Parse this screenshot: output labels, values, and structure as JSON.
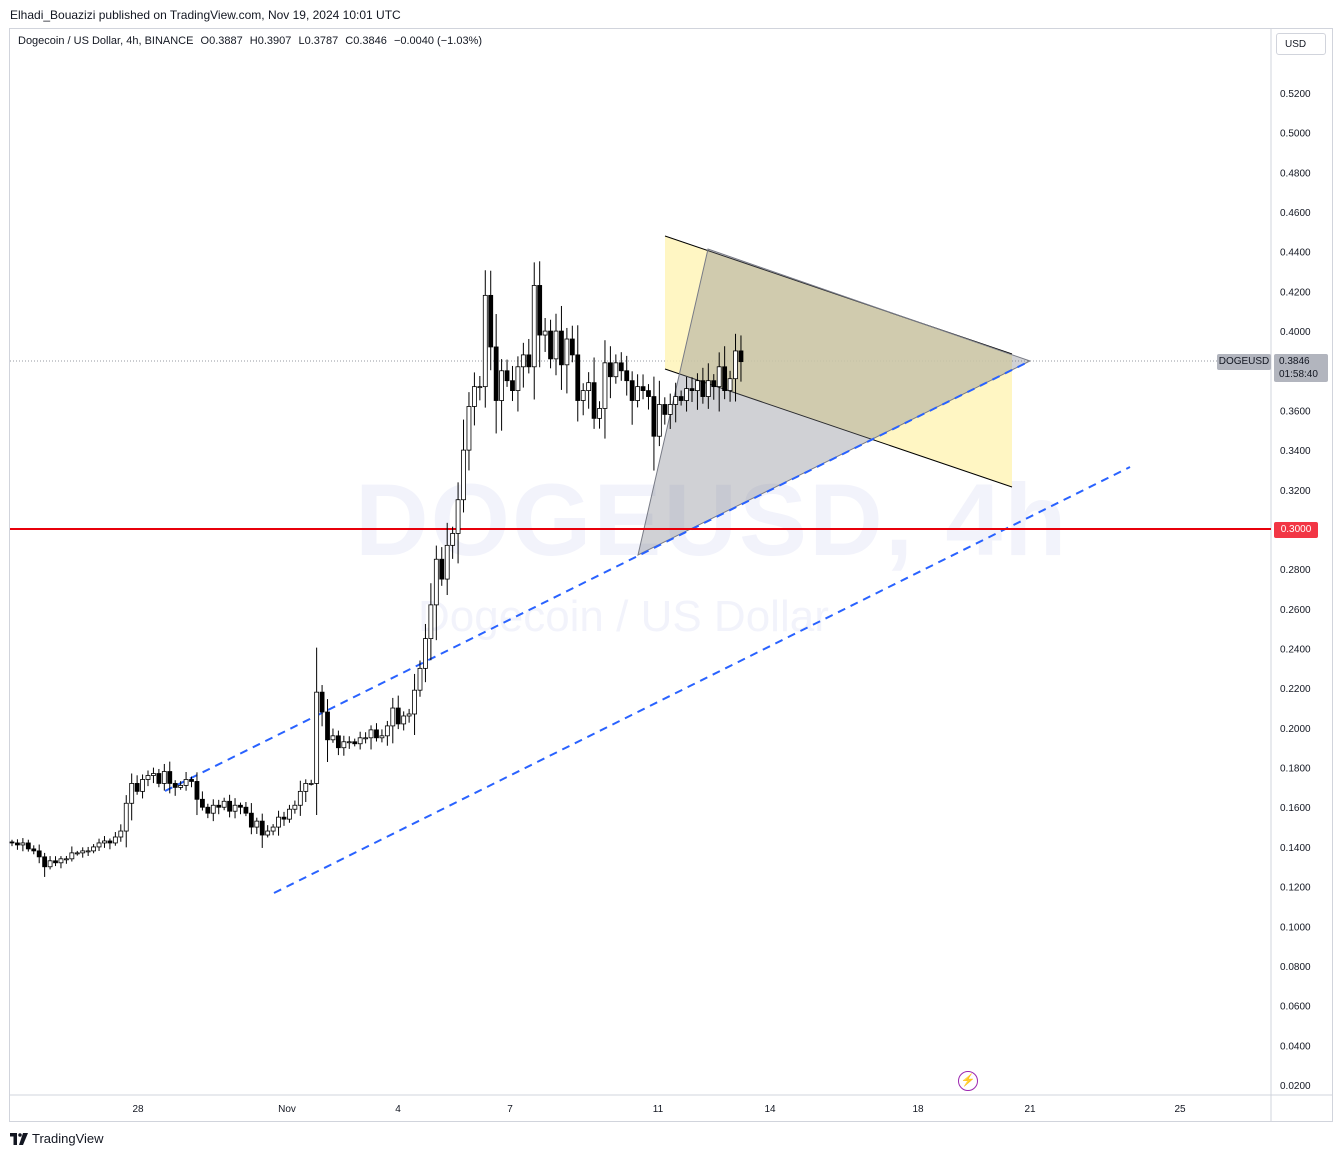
{
  "publisher": "Elhadi_Bouazizi published on TradingView.com, Nov 19, 2024 10:01 UTC",
  "symbol_line": {
    "name": "Dogecoin / US Dollar, 4h, BINANCE",
    "open": "O0.3887",
    "high": "H0.3907",
    "low": "L0.3787",
    "close": "C0.3846",
    "change": "−0.0040 (−1.03%)"
  },
  "currency": "USD",
  "watermark": {
    "line1": "DOGEUSD, 4h",
    "line2": "Dogecoin / US Dollar"
  },
  "price_tag": {
    "symbol": "DOGEUSD",
    "price": "0.3846",
    "countdown": "01:58:40"
  },
  "level_tag": "0.3000",
  "logo_text": "TradingView",
  "icons": {
    "logo": "tradingview-logo-icon",
    "lightning": "lightning-icon"
  },
  "colors": {
    "up": "#ffffff",
    "down": "#000000",
    "level": "#e8000b",
    "channel": "#2962ff",
    "flag_fill": "#fff5b8",
    "triangle_fill": "#9598a1"
  },
  "chart_data": {
    "type": "candlestick",
    "y_axis": {
      "ticks": [
        "0.5200",
        "0.5000",
        "0.4800",
        "0.4600",
        "0.4400",
        "0.4200",
        "0.4000",
        "0.3800",
        "0.3600",
        "0.3400",
        "0.3200",
        "0.3000",
        "0.2800",
        "0.2600",
        "0.2400",
        "0.2200",
        "0.2000",
        "0.1800",
        "0.1600",
        "0.1400",
        "0.1200",
        "0.1000",
        "0.0800",
        "0.0600",
        "0.0400",
        "0.0200"
      ],
      "range": [
        0.019,
        0.527
      ]
    },
    "x_axis": {
      "labels": [
        "28",
        "Nov",
        "4",
        "7",
        "11",
        "14",
        "18",
        "21",
        "25"
      ]
    },
    "horizontal_level": 0.3,
    "last_price": 0.3846,
    "candles_close": [
      0.142,
      0.141,
      0.142,
      0.139,
      0.138,
      0.135,
      0.13,
      0.133,
      0.132,
      0.134,
      0.134,
      0.137,
      0.137,
      0.138,
      0.138,
      0.14,
      0.142,
      0.143,
      0.142,
      0.145,
      0.148,
      0.162,
      0.172,
      0.168,
      0.174,
      0.176,
      0.177,
      0.172,
      0.178,
      0.172,
      0.17,
      0.171,
      0.174,
      0.173,
      0.164,
      0.16,
      0.157,
      0.161,
      0.16,
      0.163,
      0.158,
      0.161,
      0.16,
      0.157,
      0.15,
      0.153,
      0.146,
      0.148,
      0.15,
      0.155,
      0.154,
      0.159,
      0.161,
      0.168,
      0.172,
      0.172,
      0.218,
      0.208,
      0.194,
      0.196,
      0.19,
      0.193,
      0.193,
      0.192,
      0.195,
      0.195,
      0.199,
      0.195,
      0.196,
      0.201,
      0.21,
      0.202,
      0.206,
      0.207,
      0.219,
      0.23,
      0.245,
      0.262,
      0.285,
      0.275,
      0.292,
      0.298,
      0.315,
      0.34,
      0.362,
      0.372,
      0.372,
      0.418,
      0.392,
      0.365,
      0.38,
      0.375,
      0.37,
      0.382,
      0.388,
      0.382,
      0.423,
      0.398,
      0.4,
      0.386,
      0.4,
      0.383,
      0.396,
      0.388,
      0.365,
      0.37,
      0.374,
      0.356,
      0.361,
      0.384,
      0.377,
      0.384,
      0.38,
      0.375,
      0.365,
      0.372,
      0.37,
      0.367,
      0.347,
      0.363,
      0.358,
      0.363,
      0.367,
      0.365,
      0.371,
      0.37,
      0.375,
      0.367,
      0.375,
      0.372,
      0.382,
      0.37,
      0.376,
      0.39,
      0.3846
    ]
  }
}
